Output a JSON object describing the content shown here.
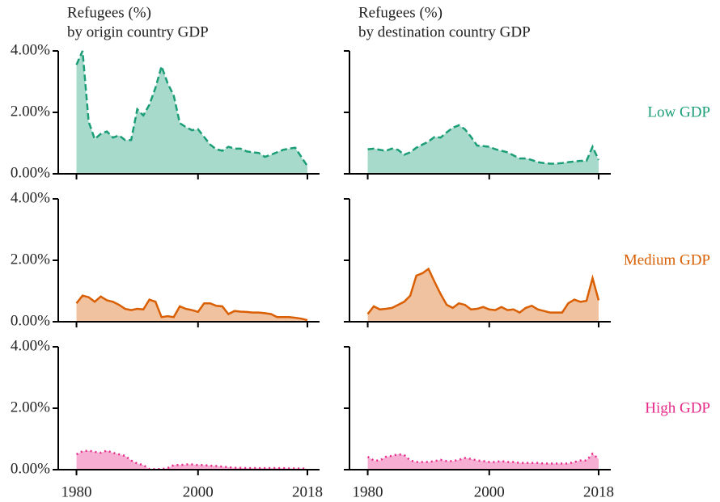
{
  "chart_data": {
    "type": "area",
    "titles": [
      [
        "Refugees (%)",
        "by origin country GDP"
      ],
      [
        "Refugees (%)",
        "by destination country GDP"
      ]
    ],
    "x": [
      1980,
      1981,
      1982,
      1983,
      1984,
      1985,
      1986,
      1987,
      1988,
      1989,
      1990,
      1991,
      1992,
      1993,
      1994,
      1995,
      1996,
      1997,
      1998,
      1999,
      2000,
      2001,
      2002,
      2003,
      2004,
      2005,
      2006,
      2007,
      2008,
      2009,
      2010,
      2011,
      2012,
      2013,
      2014,
      2015,
      2016,
      2017,
      2018
    ],
    "xlim": [
      1977,
      2020
    ],
    "xticks": [
      1980,
      2000,
      2018
    ],
    "ylim": [
      0,
      4
    ],
    "yticks": [
      {
        "value": 0,
        "label": "0.00%"
      },
      {
        "value": 2,
        "label": "2.00%"
      },
      {
        "value": 4,
        "label": "4.00%"
      }
    ],
    "rows": [
      {
        "name": "Low GDP",
        "color": "#1b9e77",
        "linestyle": "dashed",
        "origin": [
          3.55,
          4.0,
          1.7,
          1.13,
          1.3,
          1.38,
          1.18,
          1.25,
          1.1,
          1.1,
          2.1,
          1.9,
          2.25,
          2.8,
          3.5,
          2.95,
          2.55,
          1.65,
          1.52,
          1.42,
          1.45,
          1.2,
          0.95,
          0.8,
          0.75,
          0.88,
          0.82,
          0.82,
          0.73,
          0.7,
          0.68,
          0.55,
          0.62,
          0.7,
          0.78,
          0.82,
          0.85,
          0.55,
          0.25
        ],
        "destination": [
          0.8,
          0.82,
          0.78,
          0.75,
          0.82,
          0.78,
          0.62,
          0.7,
          0.85,
          0.95,
          1.05,
          1.2,
          1.18,
          1.35,
          1.5,
          1.58,
          1.45,
          1.2,
          0.92,
          0.9,
          0.88,
          0.8,
          0.75,
          0.7,
          0.6,
          0.5,
          0.5,
          0.45,
          0.38,
          0.35,
          0.33,
          0.33,
          0.35,
          0.38,
          0.4,
          0.42,
          0.42,
          0.88,
          0.45
        ]
      },
      {
        "name": "Medium GDP",
        "color": "#d95f02",
        "linestyle": "solid",
        "origin": [
          0.6,
          0.85,
          0.8,
          0.65,
          0.82,
          0.7,
          0.65,
          0.55,
          0.42,
          0.38,
          0.42,
          0.4,
          0.72,
          0.65,
          0.15,
          0.18,
          0.15,
          0.5,
          0.42,
          0.38,
          0.32,
          0.6,
          0.6,
          0.52,
          0.5,
          0.25,
          0.35,
          0.33,
          0.32,
          0.3,
          0.3,
          0.28,
          0.25,
          0.15,
          0.15,
          0.15,
          0.13,
          0.1,
          0.05
        ],
        "destination": [
          0.25,
          0.5,
          0.4,
          0.42,
          0.45,
          0.55,
          0.65,
          0.85,
          1.5,
          1.58,
          1.72,
          1.3,
          0.9,
          0.55,
          0.45,
          0.6,
          0.55,
          0.4,
          0.42,
          0.48,
          0.4,
          0.38,
          0.48,
          0.38,
          0.4,
          0.3,
          0.45,
          0.52,
          0.4,
          0.35,
          0.3,
          0.3,
          0.3,
          0.6,
          0.72,
          0.65,
          0.68,
          1.42,
          0.7
        ]
      },
      {
        "name": "High GDP",
        "color": "#e7298a",
        "linestyle": "dotted",
        "origin": [
          0.5,
          0.6,
          0.62,
          0.58,
          0.55,
          0.62,
          0.55,
          0.5,
          0.45,
          0.3,
          0.2,
          0.15,
          0.02,
          0.02,
          0.02,
          0.05,
          0.15,
          0.15,
          0.17,
          0.17,
          0.15,
          0.15,
          0.13,
          0.12,
          0.1,
          0.08,
          0.06,
          0.06,
          0.05,
          0.05,
          0.05,
          0.05,
          0.05,
          0.05,
          0.05,
          0.04,
          0.04,
          0.04,
          0.03
        ],
        "destination": [
          0.42,
          0.3,
          0.3,
          0.42,
          0.45,
          0.5,
          0.48,
          0.3,
          0.25,
          0.25,
          0.25,
          0.28,
          0.32,
          0.28,
          0.28,
          0.32,
          0.38,
          0.35,
          0.3,
          0.28,
          0.25,
          0.25,
          0.28,
          0.25,
          0.25,
          0.22,
          0.22,
          0.22,
          0.22,
          0.2,
          0.2,
          0.2,
          0.2,
          0.2,
          0.25,
          0.3,
          0.3,
          0.52,
          0.35
        ]
      }
    ]
  }
}
